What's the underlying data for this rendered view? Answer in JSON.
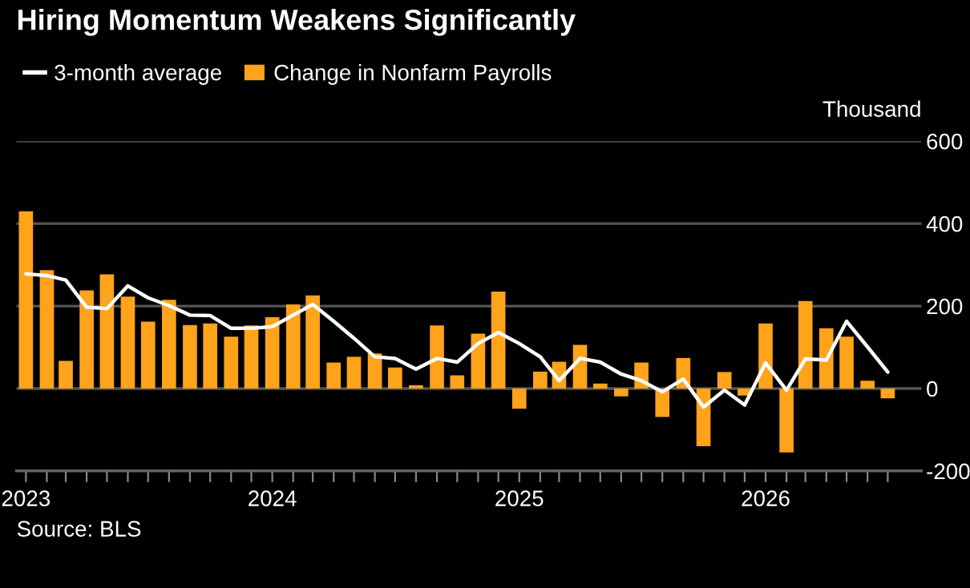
{
  "chart_data": {
    "type": "bar",
    "title": "Hiring Momentum Weakens Significantly",
    "ylabel": "Thousand",
    "annotations": [
      "Source: BLS"
    ],
    "x": [
      "2023-01",
      "2023-02",
      "2023-03",
      "2023-04",
      "2023-05",
      "2023-06",
      "2023-07",
      "2023-08",
      "2023-09",
      "2023-10",
      "2023-11",
      "2023-12",
      "2024-01",
      "2024-02",
      "2024-03",
      "2024-04",
      "2024-05",
      "2024-06",
      "2024-07",
      "2024-08",
      "2024-09",
      "2024-10",
      "2024-11",
      "2024-12",
      "2025-01",
      "2025-02",
      "2025-03",
      "2025-04",
      "2025-05",
      "2025-06",
      "2025-07",
      "2025-08",
      "2025-09",
      "2025-10",
      "2025-11",
      "2025-12",
      "2026-01",
      "2026-02",
      "2026-03",
      "2026-04",
      "2026-05",
      "2026-06",
      "2026-07"
    ],
    "series": [
      {
        "name": "3-month average",
        "type": "line",
        "color": "#ffffff",
        "values": [
          278,
          274,
          263,
          197,
          194,
          249,
          220,
          201,
          178,
          177,
          146,
          146,
          150,
          178,
          204,
          163,
          122,
          77,
          73,
          47,
          73,
          64,
          109,
          136,
          109,
          77,
          19,
          73,
          64,
          35,
          19,
          -8,
          23,
          -45,
          -4,
          -40,
          62,
          -4,
          72,
          69,
          163,
          101,
          40
        ]
      },
      {
        "name": "Change in Nonfarm Payrolls",
        "color": "#ffa31a",
        "values": [
          430,
          287,
          67,
          238,
          277,
          223,
          162,
          215,
          154,
          158,
          126,
          153,
          173,
          204,
          226,
          63,
          77,
          85,
          51,
          8,
          153,
          32,
          133,
          235,
          -49,
          41,
          65,
          106,
          12,
          -19,
          63,
          -69,
          74,
          -140,
          40,
          -17,
          158,
          -155,
          212,
          146,
          126,
          19,
          -24
        ]
      }
    ],
    "xlim": [
      "2022-12-18",
      "2026-08-20"
    ],
    "xticks": [
      {
        "value": "2023-01",
        "label": "2023"
      },
      {
        "value": "2023-02",
        "label": null
      },
      {
        "value": "2023-03",
        "label": null
      },
      {
        "value": "2023-04",
        "label": null
      },
      {
        "value": "2023-05",
        "label": null
      },
      {
        "value": "2023-06",
        "label": null
      },
      {
        "value": "2023-07",
        "label": null
      },
      {
        "value": "2023-08",
        "label": null
      },
      {
        "value": "2023-09",
        "label": null
      },
      {
        "value": "2023-10",
        "label": null
      },
      {
        "value": "2023-11",
        "label": null
      },
      {
        "value": "2023-12",
        "label": null
      },
      {
        "value": "2024-01",
        "label": "2024"
      },
      {
        "value": "2024-02",
        "label": null
      },
      {
        "value": "2024-03",
        "label": null
      },
      {
        "value": "2024-04",
        "label": null
      },
      {
        "value": "2024-05",
        "label": null
      },
      {
        "value": "2024-06",
        "label": null
      },
      {
        "value": "2024-07",
        "label": null
      },
      {
        "value": "2024-08",
        "label": null
      },
      {
        "value": "2024-09",
        "label": null
      },
      {
        "value": "2024-10",
        "label": null
      },
      {
        "value": "2024-11",
        "label": null
      },
      {
        "value": "2024-12",
        "label": null
      },
      {
        "value": "2025-01",
        "label": "2025"
      },
      {
        "value": "2025-02",
        "label": null
      },
      {
        "value": "2025-03",
        "label": null
      },
      {
        "value": "2025-04",
        "label": null
      },
      {
        "value": "2025-05",
        "label": null
      },
      {
        "value": "2025-06",
        "label": null
      },
      {
        "value": "2025-07",
        "label": null
      },
      {
        "value": "2025-08",
        "label": null
      },
      {
        "value": "2025-09",
        "label": null
      },
      {
        "value": "2025-10",
        "label": null
      },
      {
        "value": "2025-11",
        "label": null
      },
      {
        "value": "2025-12",
        "label": null
      },
      {
        "value": "2026-01",
        "label": "2026"
      },
      {
        "value": "2026-02",
        "label": null
      },
      {
        "value": "2026-03",
        "label": null
      },
      {
        "value": "2026-04",
        "label": null
      },
      {
        "value": "2026-05",
        "label": null
      },
      {
        "value": "2026-06",
        "label": null
      },
      {
        "value": "2026-07",
        "label": null
      }
    ],
    "ylim": [
      -200,
      600
    ],
    "yticks": [
      -200,
      0,
      200,
      400,
      600
    ],
    "grid": "y",
    "legend": "top left"
  }
}
